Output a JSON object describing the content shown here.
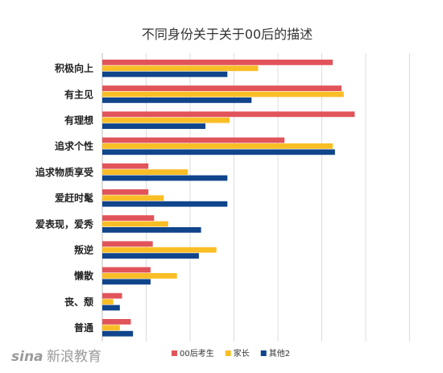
{
  "chart_data": {
    "type": "bar",
    "orientation": "horizontal",
    "title": "不同身份关于关于00后的描述",
    "categories": [
      "积极向上",
      "有主见",
      "有理想",
      "追求个性",
      "追求物质享受",
      "爱赶时髦",
      "爱表现，爱秀",
      "叛逆",
      "懒散",
      "丧、颓",
      "普通"
    ],
    "series": [
      {
        "name": "00后考生",
        "color": "#e1545a",
        "values": [
          52.5,
          54.5,
          57.5,
          41.5,
          10.5,
          10.5,
          11.8,
          11.5,
          11.0,
          4.5,
          6.5
        ]
      },
      {
        "name": "家长",
        "color": "#f9be26",
        "values": [
          35.5,
          55.0,
          29.0,
          52.5,
          19.5,
          14.0,
          15.0,
          26.0,
          17.0,
          2.5,
          4.0
        ]
      },
      {
        "name": "其他2",
        "color": "#10458c",
        "values": [
          28.5,
          34.0,
          23.5,
          53.0,
          28.5,
          28.5,
          22.5,
          22.0,
          11.0,
          4.0,
          7.0
        ]
      }
    ],
    "xlim": [
      0,
      70
    ],
    "grid": true,
    "legend_position": "bottom-right"
  },
  "watermark": {
    "brand": "sina",
    "text": "新浪教育"
  }
}
